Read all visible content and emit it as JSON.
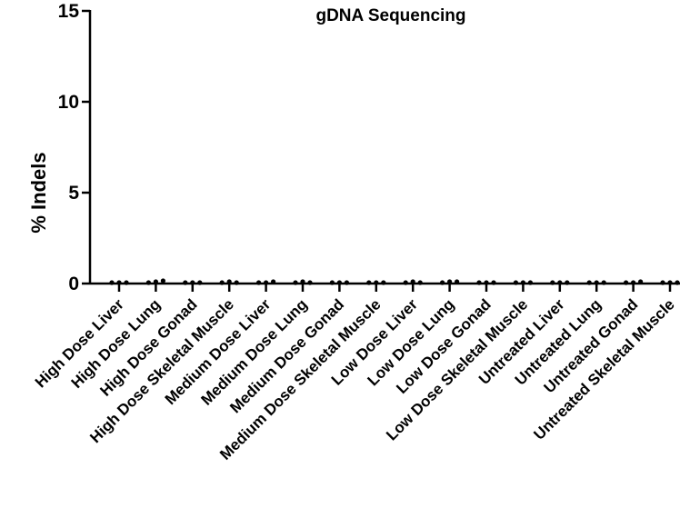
{
  "chart_data": {
    "type": "scatter",
    "title": "gDNA Sequencing",
    "xlabel": "",
    "ylabel": "% Indels",
    "ylim": [
      0,
      15
    ],
    "yticks": [
      0,
      5,
      10,
      15
    ],
    "grid": false,
    "categories": [
      "High Dose Liver",
      "High Dose Lung",
      "High Dose Gonad",
      "High Dose Skeletal Muscle",
      "Medium Dose Liver",
      "Medium Dose Lung",
      "Medium Dose Gonad",
      "Medium Dose Skeletal Muscle",
      "Low Dose Liver",
      "Low Dose Lung",
      "Low Dose Gonad",
      "Low Dose Skeletal Muscle",
      "Untreated Liver",
      "Untreated Lung",
      "Untreated Gonad",
      "Untreated Skeletal Muscle"
    ],
    "values": [
      [
        0.05,
        0.05,
        0.05
      ],
      [
        0.05,
        0.1,
        0.15
      ],
      [
        0.05,
        0.05,
        0.05
      ],
      [
        0.05,
        0.1,
        0.05
      ],
      [
        0.05,
        0.05,
        0.1
      ],
      [
        0.05,
        0.1,
        0.05
      ],
      [
        0.05,
        0.05,
        0.05
      ],
      [
        0.05,
        0.05,
        0.05
      ],
      [
        0.05,
        0.1,
        0.05
      ],
      [
        0.05,
        0.1,
        0.1
      ],
      [
        0.05,
        0.05,
        0.05
      ],
      [
        0.05,
        0.05,
        0.05
      ],
      [
        0.05,
        0.05,
        0.05
      ],
      [
        0.05,
        0.05,
        0.05
      ],
      [
        0.05,
        0.05,
        0.1
      ],
      [
        0.05,
        0.05,
        0.05
      ]
    ]
  }
}
